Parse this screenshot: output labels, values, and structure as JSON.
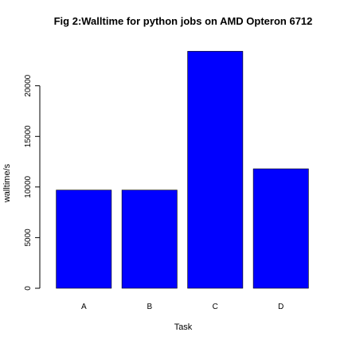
{
  "chart_data": {
    "type": "bar",
    "title": "Fig 2:Walltime for python jobs on AMD Opteron 6712",
    "xlabel": "Task",
    "ylabel": "walltime/s",
    "categories": [
      "A",
      "B",
      "C",
      "D"
    ],
    "values": [
      9700,
      9700,
      23400,
      11800
    ],
    "ylim": [
      0,
      24300
    ],
    "yticks": [
      0,
      5000,
      10000,
      15000,
      20000
    ],
    "bar_color": "#0000ff",
    "grid": false,
    "legend": "none"
  }
}
